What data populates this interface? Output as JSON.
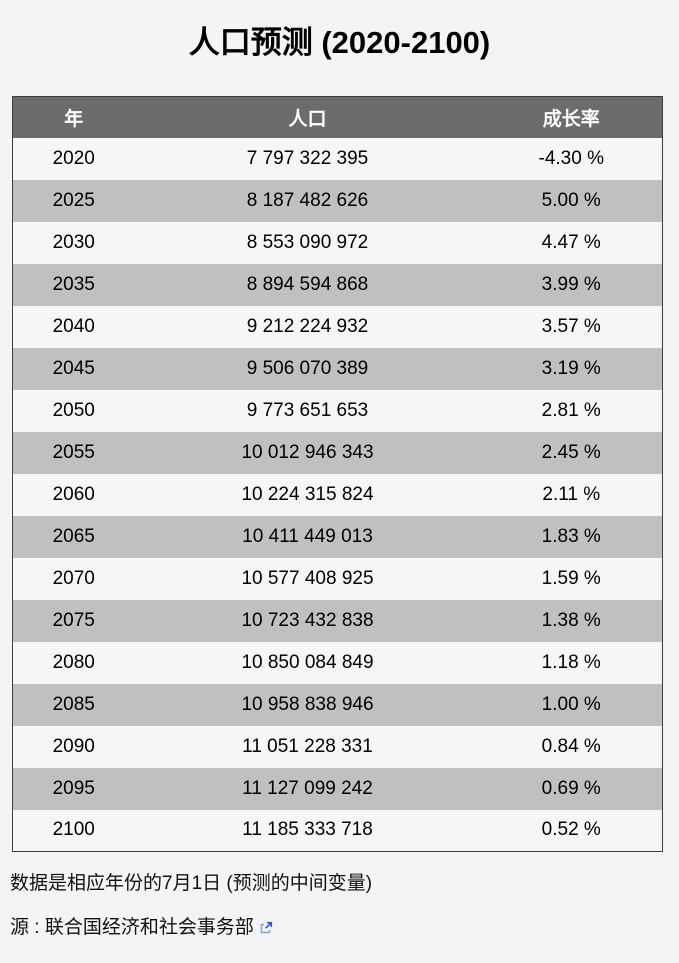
{
  "title": "人口预测 (2020-2100)",
  "table": {
    "headers": [
      "年",
      "人口",
      "成长率"
    ],
    "rows": [
      {
        "year": "2020",
        "population": "7 797 322 395",
        "growth": "-4.30 %"
      },
      {
        "year": "2025",
        "population": "8 187 482 626",
        "growth": "5.00 %"
      },
      {
        "year": "2030",
        "population": "8 553 090 972",
        "growth": "4.47 %"
      },
      {
        "year": "2035",
        "population": "8 894 594 868",
        "growth": "3.99 %"
      },
      {
        "year": "2040",
        "population": "9 212 224 932",
        "growth": "3.57 %"
      },
      {
        "year": "2045",
        "population": "9 506 070 389",
        "growth": "3.19 %"
      },
      {
        "year": "2050",
        "population": "9 773 651 653",
        "growth": "2.81 %"
      },
      {
        "year": "2055",
        "population": "10 012 946 343",
        "growth": "2.45 %"
      },
      {
        "year": "2060",
        "population": "10 224 315 824",
        "growth": "2.11 %"
      },
      {
        "year": "2065",
        "population": "10 411 449 013",
        "growth": "1.83 %"
      },
      {
        "year": "2070",
        "population": "10 577 408 925",
        "growth": "1.59 %"
      },
      {
        "year": "2075",
        "population": "10 723 432 838",
        "growth": "1.38 %"
      },
      {
        "year": "2080",
        "population": "10 850 084 849",
        "growth": "1.18 %"
      },
      {
        "year": "2085",
        "population": "10 958 838 946",
        "growth": "1.00 %"
      },
      {
        "year": "2090",
        "population": "11 051 228 331",
        "growth": "0.84 %"
      },
      {
        "year": "2095",
        "population": "11 127 099 242",
        "growth": "0.69 %"
      },
      {
        "year": "2100",
        "population": "11 185 333 718",
        "growth": "0.52 %"
      }
    ]
  },
  "footnote": "数据是相应年份的7月1日 (预测的中间变量)",
  "source": {
    "label": "源 :",
    "link_text": "联合国经济和社会事务部",
    "icon": "external-link-icon"
  },
  "colors": {
    "page_bg": "#f4f4f4",
    "header_bg": "#6c6c6c",
    "header_text": "#ffffff",
    "row_light": "#f6f6f6",
    "row_dark": "#c0c0c0",
    "table_border": "#3e3e3e",
    "external_icon_blue": "#2f5bc7"
  },
  "chart_data": {
    "type": "table",
    "title": "人口预测 (2020-2100)",
    "columns": [
      "年",
      "人口",
      "成长率"
    ],
    "rows": [
      [
        2020,
        7797322395,
        -4.3
      ],
      [
        2025,
        8187482626,
        5.0
      ],
      [
        2030,
        8553090972,
        4.47
      ],
      [
        2035,
        8894594868,
        3.99
      ],
      [
        2040,
        9212224932,
        3.57
      ],
      [
        2045,
        9506070389,
        3.19
      ],
      [
        2050,
        9773651653,
        2.81
      ],
      [
        2055,
        10012946343,
        2.45
      ],
      [
        2060,
        10224315824,
        2.11
      ],
      [
        2065,
        10411449013,
        1.83
      ],
      [
        2070,
        10577408925,
        1.59
      ],
      [
        2075,
        10723432838,
        1.38
      ],
      [
        2080,
        10850084849,
        1.18
      ],
      [
        2085,
        10958838946,
        1.0
      ],
      [
        2090,
        11051228331,
        0.84
      ],
      [
        2095,
        11127099242,
        0.69
      ],
      [
        2100,
        11185333718,
        0.52
      ]
    ]
  }
}
